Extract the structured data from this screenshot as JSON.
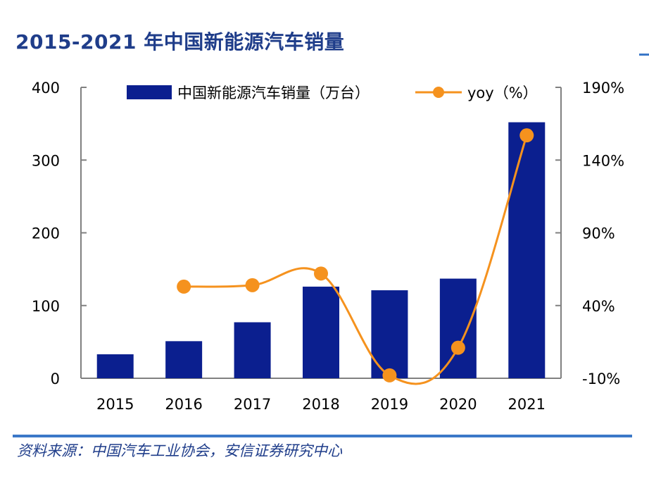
{
  "page": {
    "title": "2015-2021 年中国新能源汽车销量",
    "source": "资料来源：中国汽车工业协会，安信证券研究中心"
  },
  "colors": {
    "bar": "#0b1f8f",
    "line": "#f5921e",
    "title": "#1f3d8a",
    "rule": "#3b78c8",
    "axis": "#808080"
  },
  "chart_data": {
    "type": "bar",
    "categories": [
      "2015",
      "2016",
      "2017",
      "2018",
      "2019",
      "2020",
      "2021"
    ],
    "series": [
      {
        "name": "中国新能源汽车销量（万台）",
        "type": "bar",
        "axis": "left",
        "values": [
          33,
          51,
          77,
          126,
          121,
          137,
          352
        ]
      },
      {
        "name": "yoy（%）",
        "type": "line",
        "axis": "right",
        "values": [
          null,
          53,
          54,
          62,
          -8,
          11,
          157
        ]
      }
    ],
    "y_left": {
      "ylim": [
        0,
        400
      ],
      "ticks": [
        0,
        100,
        200,
        300,
        400
      ],
      "tick_labels": [
        "0",
        "100",
        "200",
        "300",
        "400"
      ]
    },
    "y_right": {
      "ylim": [
        -10,
        190
      ],
      "ticks": [
        -10,
        40,
        90,
        140,
        190
      ],
      "tick_labels": [
        "-10%",
        "40%",
        "90%",
        "140%",
        "190%"
      ]
    },
    "grid": false,
    "legend": "top"
  }
}
